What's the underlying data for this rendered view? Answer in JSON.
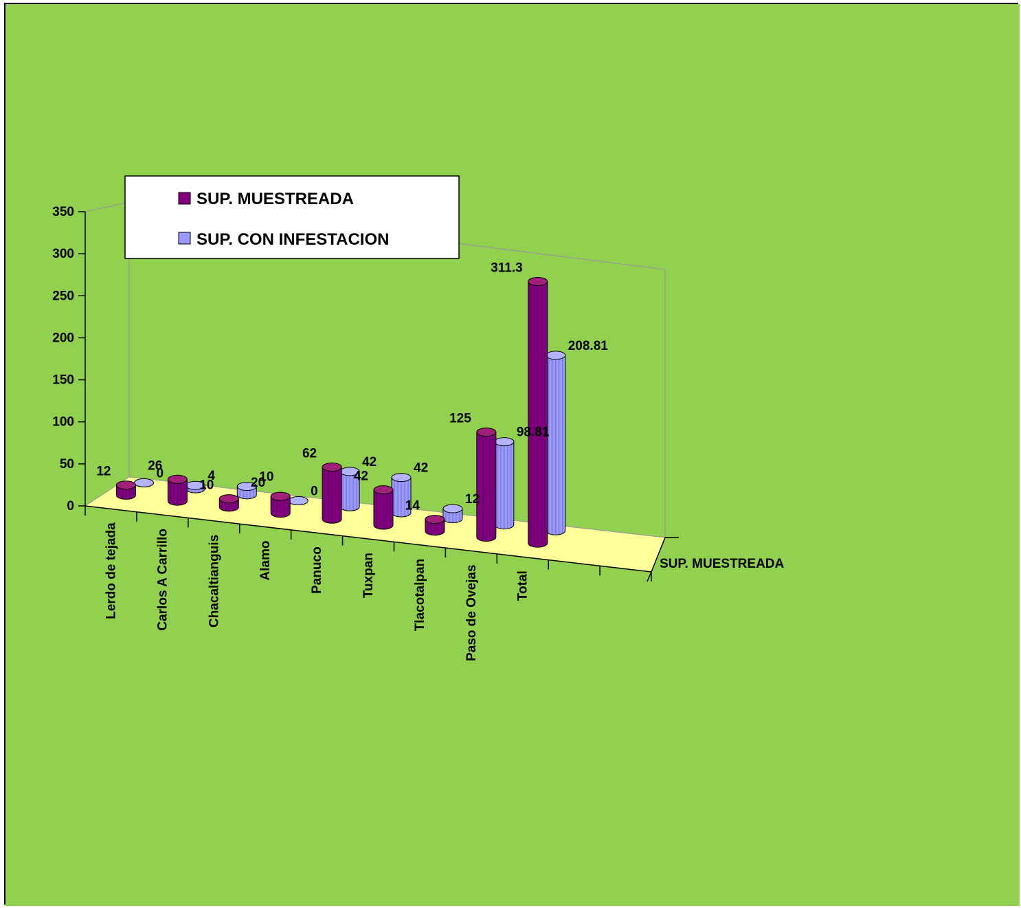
{
  "chart_data": {
    "type": "bar",
    "style": "3d-cylinder",
    "title": "",
    "xlabel": "",
    "ylabel": "",
    "ylim": [
      0,
      350
    ],
    "yticks": [
      0,
      50,
      100,
      150,
      200,
      250,
      300,
      350
    ],
    "categories": [
      "Lerdo de tejada",
      "Carlos A Carrillo",
      "Chacaltianguis",
      "Alamo",
      "Panuco",
      "Tuxpan",
      "Tlacotalpan",
      "Paso  de Ovejas",
      "Total"
    ],
    "series": [
      {
        "name": "SUP. MUESTREADA",
        "values": [
          12,
          26,
          10,
          20,
          62,
          42,
          14,
          125,
          311.3
        ],
        "labels": [
          "12",
          "26",
          "10",
          "20",
          "62",
          "42",
          "14",
          "125",
          "311.3"
        ]
      },
      {
        "name": "SUP. CON INFESTACION",
        "values": [
          0,
          4,
          10,
          0,
          42,
          42,
          12,
          98.81,
          208.81
        ],
        "labels": [
          "0",
          "4",
          "10",
          "0",
          "42",
          "42",
          "12",
          "98.81",
          "208.81"
        ]
      }
    ],
    "depth_axis_label": "SUP. MUESTREADA",
    "legend_position": "top-left",
    "grid": false,
    "colors": {
      "background": "#92d050",
      "floor": "#ffff99",
      "walls": "#92d050",
      "series1": "#800080",
      "series1_top": "#a0207a",
      "series2": "#9999ff",
      "series2_top": "#b3b3ff"
    }
  }
}
